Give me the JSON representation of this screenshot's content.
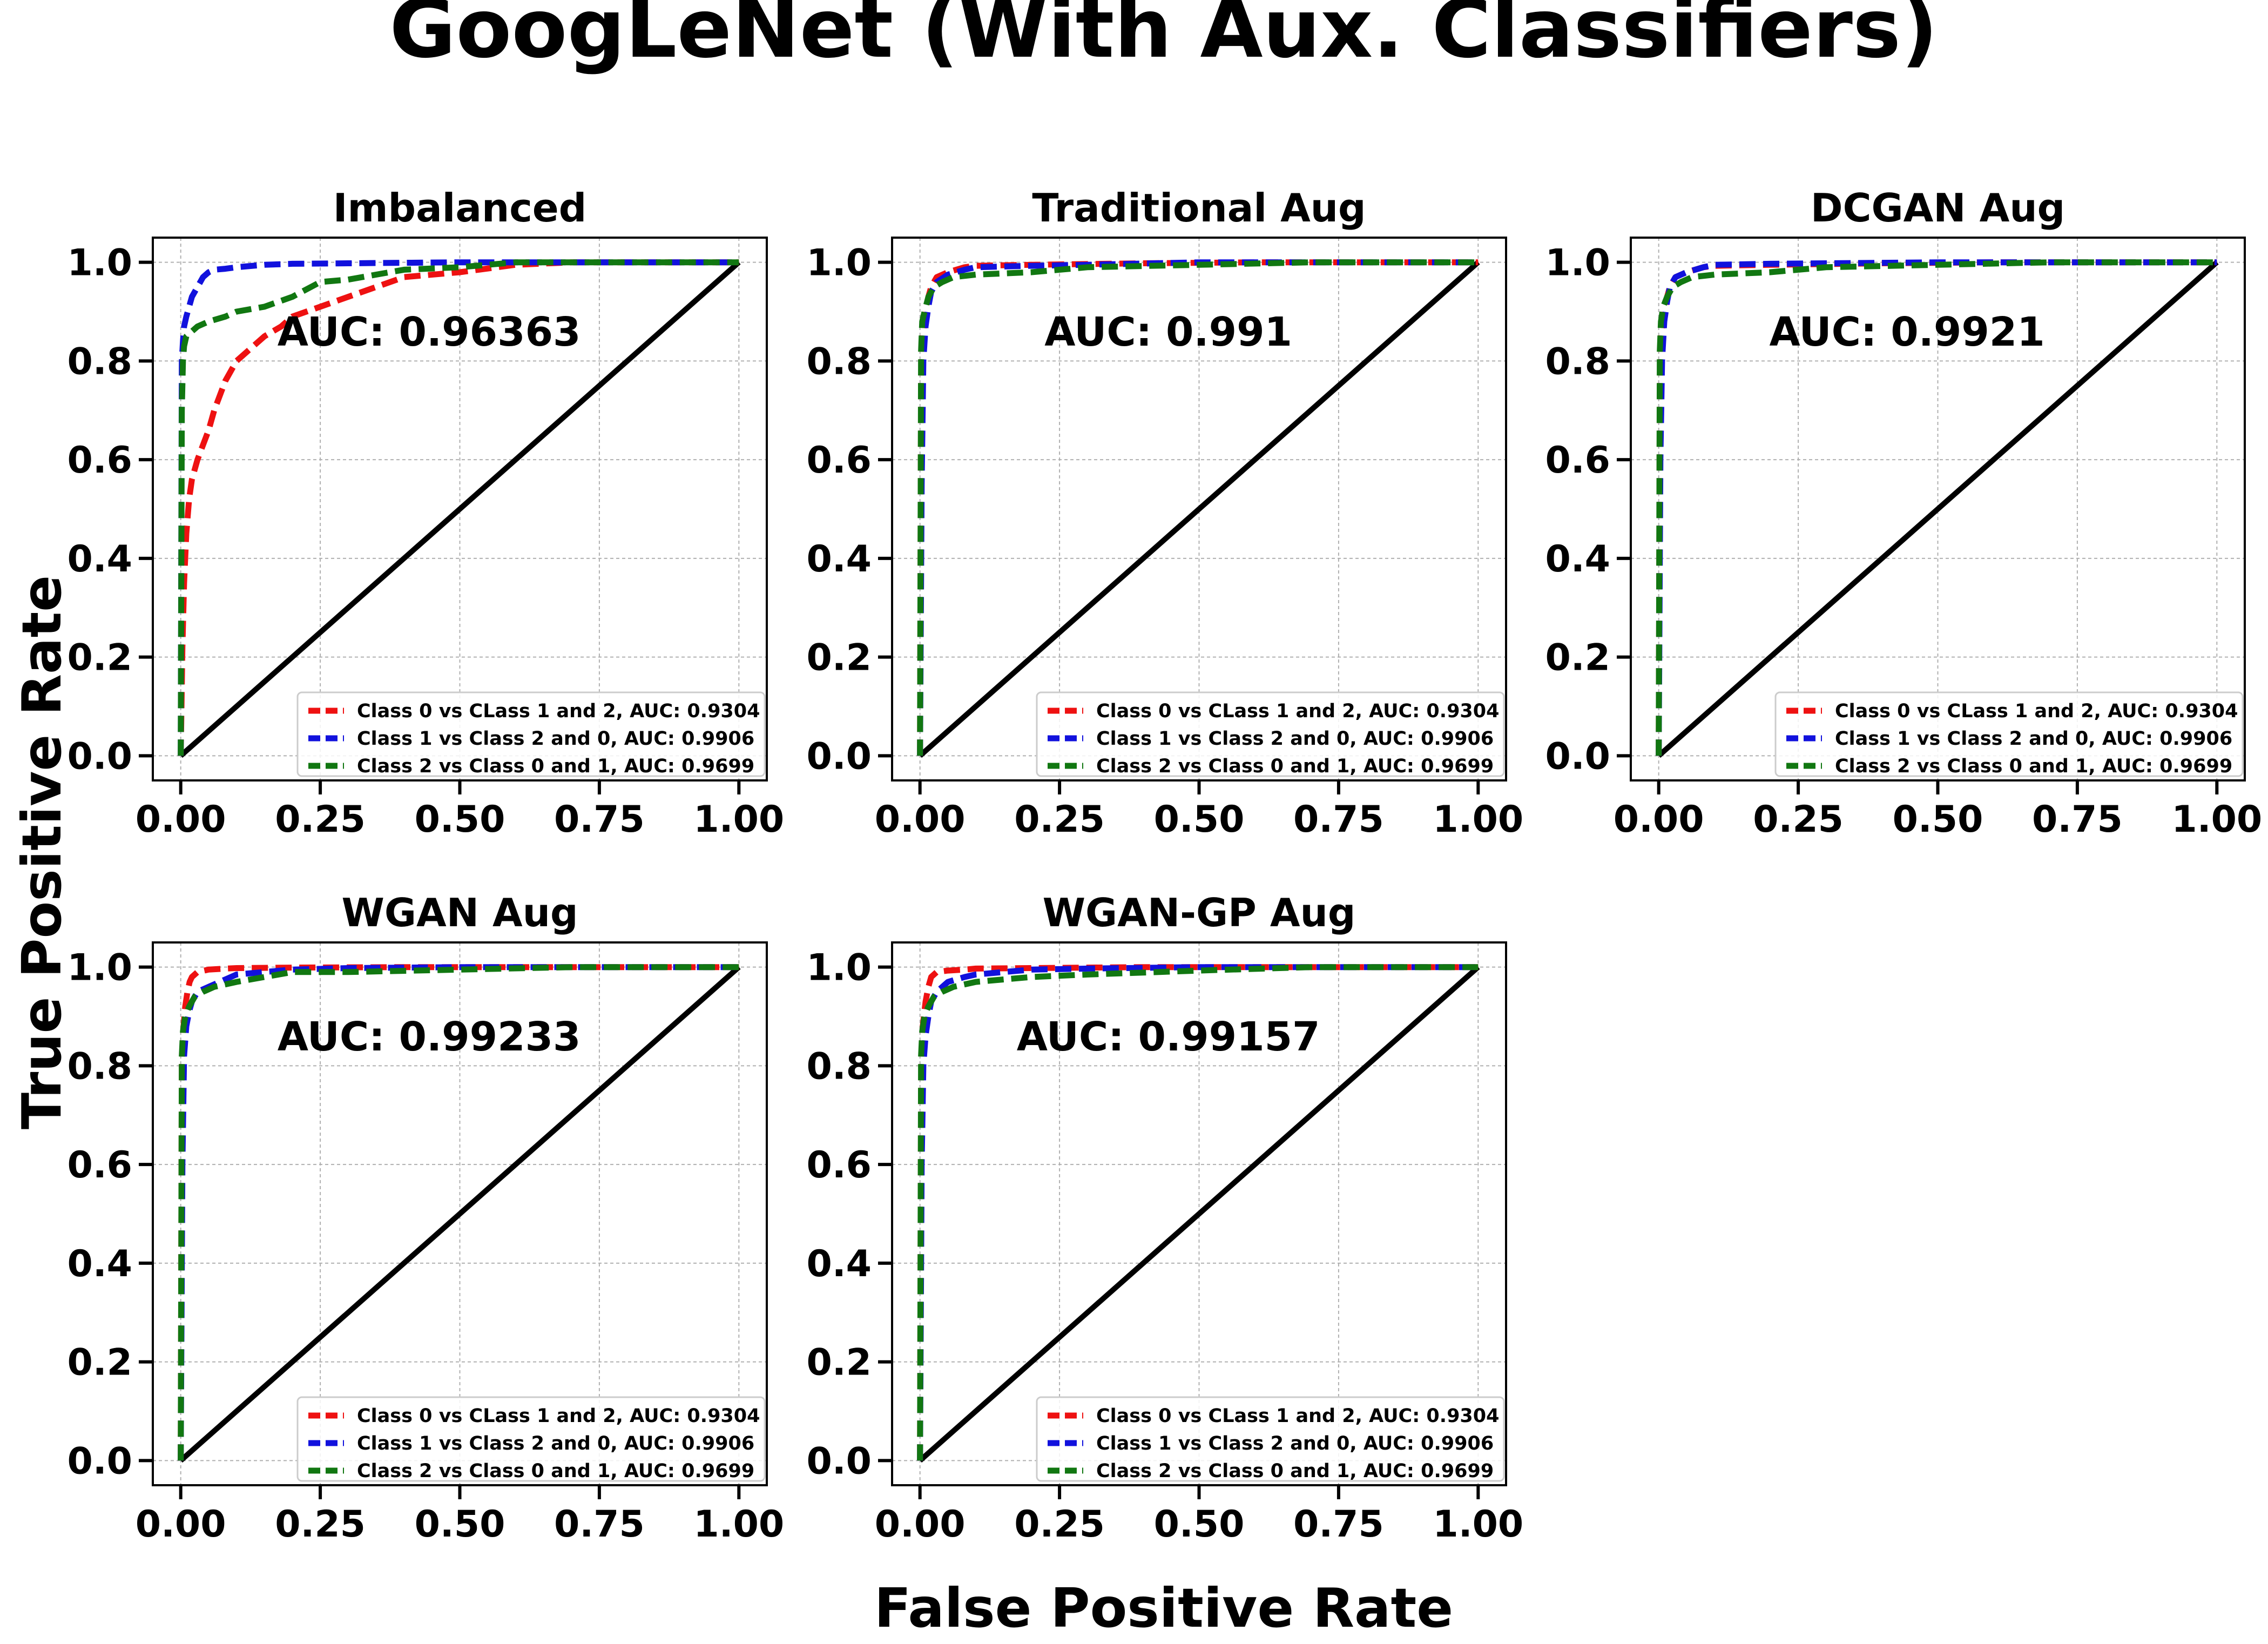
{
  "figure": {
    "title": "GoogLeNet (With Aux. Classifiers)",
    "xlabel": "False Positive Rate",
    "ylabel": "True Positive Rate"
  },
  "colors": {
    "class0": "#ee1111",
    "class1": "#1111dd",
    "class2": "#117711",
    "diagonal": "#000000",
    "grid": "#b0b0b0"
  },
  "chart_data": [
    {
      "type": "line",
      "title": "Imbalanced",
      "auc_label": "AUC: 0.96363",
      "xlim": [
        -0.05,
        1.05
      ],
      "ylim": [
        -0.05,
        1.05
      ],
      "xticks": [
        "0.00",
        "0.25",
        "0.50",
        "0.75",
        "1.00"
      ],
      "yticks": [
        "0.0",
        "0.2",
        "0.4",
        "0.6",
        "0.8",
        "1.0"
      ],
      "grid": true,
      "legend_position": "lower right",
      "series": [
        {
          "name": "Class 0 vs CLass 1 and 2, AUC: 0.9304",
          "x": [
            0,
            0.003,
            0.006,
            0.01,
            0.015,
            0.02,
            0.03,
            0.04,
            0.05,
            0.06,
            0.08,
            0.1,
            0.12,
            0.15,
            0.18,
            0.2,
            0.25,
            0.3,
            0.35,
            0.4,
            0.5,
            0.6,
            0.7,
            1.0
          ],
          "y": [
            0,
            0.22,
            0.35,
            0.45,
            0.52,
            0.56,
            0.6,
            0.63,
            0.66,
            0.7,
            0.76,
            0.8,
            0.82,
            0.85,
            0.87,
            0.89,
            0.91,
            0.93,
            0.95,
            0.97,
            0.98,
            0.995,
            1.0,
            1.0
          ]
        },
        {
          "name": "Class 1 vs Class 2 and 0,  AUC:  0.9906",
          "x": [
            0,
            0.002,
            0.004,
            0.006,
            0.01,
            0.015,
            0.02,
            0.03,
            0.04,
            0.05,
            0.06,
            0.08,
            0.1,
            0.15,
            0.2,
            0.3,
            0.4,
            0.5,
            0.7,
            1.0
          ],
          "y": [
            0,
            0.8,
            0.84,
            0.87,
            0.89,
            0.91,
            0.93,
            0.95,
            0.97,
            0.98,
            0.985,
            0.987,
            0.99,
            0.995,
            0.997,
            0.998,
            0.999,
            1.0,
            1.0,
            1.0
          ]
        },
        {
          "name": "Class 2 vs Class 0 and 1, AUC: 0.9699",
          "x": [
            0,
            0.002,
            0.004,
            0.006,
            0.01,
            0.015,
            0.02,
            0.03,
            0.05,
            0.08,
            0.1,
            0.15,
            0.2,
            0.25,
            0.3,
            0.35,
            0.4,
            0.5,
            0.6,
            1.0
          ],
          "y": [
            0,
            0.7,
            0.8,
            0.83,
            0.85,
            0.855,
            0.86,
            0.87,
            0.88,
            0.89,
            0.9,
            0.91,
            0.93,
            0.96,
            0.965,
            0.975,
            0.985,
            0.99,
            1.0,
            1.0
          ]
        }
      ]
    },
    {
      "type": "line",
      "title": "Traditional Aug",
      "auc_label": "AUC: 0.991",
      "xlim": [
        -0.05,
        1.05
      ],
      "ylim": [
        -0.05,
        1.05
      ],
      "xticks": [
        "0.00",
        "0.25",
        "0.50",
        "0.75",
        "1.00"
      ],
      "yticks": [
        "0.0",
        "0.2",
        "0.4",
        "0.6",
        "0.8",
        "1.0"
      ],
      "grid": true,
      "legend_position": "lower right",
      "series": [
        {
          "name": "Class 0 vs CLass 1 and 2, AUC: 0.9304",
          "x": [
            0,
            0.002,
            0.005,
            0.01,
            0.015,
            0.02,
            0.03,
            0.05,
            0.08,
            0.1,
            0.2,
            0.4,
            0.6,
            1.0
          ],
          "y": [
            0,
            0.75,
            0.85,
            0.9,
            0.93,
            0.95,
            0.97,
            0.98,
            0.99,
            0.993,
            0.995,
            0.998,
            1.0,
            1.0
          ]
        },
        {
          "name": "Class 1 vs Class 2 and 0,  AUC:  0.9906",
          "x": [
            0,
            0.003,
            0.006,
            0.01,
            0.015,
            0.02,
            0.03,
            0.05,
            0.08,
            0.1,
            0.2,
            0.3,
            0.5,
            1.0
          ],
          "y": [
            0,
            0.55,
            0.8,
            0.87,
            0.91,
            0.94,
            0.96,
            0.975,
            0.985,
            0.99,
            0.993,
            0.995,
            1.0,
            1.0
          ]
        },
        {
          "name": "Class 2 vs Class 0 and 1, AUC: 0.9699",
          "x": [
            0,
            0.002,
            0.004,
            0.008,
            0.015,
            0.025,
            0.04,
            0.06,
            0.1,
            0.2,
            0.3,
            0.5,
            0.7,
            1.0
          ],
          "y": [
            0,
            0.82,
            0.88,
            0.9,
            0.93,
            0.95,
            0.96,
            0.97,
            0.975,
            0.98,
            0.99,
            0.995,
            1.0,
            1.0
          ]
        }
      ]
    },
    {
      "type": "line",
      "title": "DCGAN Aug",
      "auc_label": "AUC: 0.9921",
      "xlim": [
        -0.05,
        1.05
      ],
      "ylim": [
        -0.05,
        1.05
      ],
      "xticks": [
        "0.00",
        "0.25",
        "0.50",
        "0.75",
        "1.00"
      ],
      "yticks": [
        "0.0",
        "0.2",
        "0.4",
        "0.6",
        "0.8",
        "1.0"
      ],
      "grid": true,
      "legend_position": "lower right",
      "series": [
        {
          "name": "Class 0 vs CLass 1 and 2, AUC: 0.9304",
          "x": [
            0,
            0.002,
            0.005,
            0.01,
            0.015,
            0.02,
            0.03,
            0.05,
            0.08,
            0.1,
            0.2,
            0.4,
            0.6,
            1.0
          ],
          "y": [
            0,
            0.72,
            0.85,
            0.9,
            0.93,
            0.95,
            0.97,
            0.98,
            0.99,
            0.993,
            0.995,
            0.998,
            1.0,
            1.0
          ]
        },
        {
          "name": "Class 1 vs Class 2 and 0,  AUC:  0.9906",
          "x": [
            0,
            0.003,
            0.006,
            0.01,
            0.015,
            0.02,
            0.03,
            0.05,
            0.08,
            0.1,
            0.2,
            0.3,
            0.5,
            1.0
          ],
          "y": [
            0,
            0.6,
            0.8,
            0.88,
            0.92,
            0.95,
            0.97,
            0.98,
            0.99,
            0.995,
            0.997,
            0.998,
            1.0,
            1.0
          ]
        },
        {
          "name": "Class 2 vs Class 0 and 1, AUC: 0.9699",
          "x": [
            0,
            0.002,
            0.004,
            0.008,
            0.015,
            0.025,
            0.04,
            0.06,
            0.1,
            0.2,
            0.3,
            0.5,
            0.7,
            1.0
          ],
          "y": [
            0,
            0.82,
            0.88,
            0.91,
            0.93,
            0.95,
            0.96,
            0.97,
            0.975,
            0.98,
            0.99,
            0.995,
            1.0,
            1.0
          ]
        }
      ]
    },
    {
      "type": "line",
      "title": "WGAN Aug",
      "auc_label": "AUC: 0.99233",
      "xlim": [
        -0.05,
        1.05
      ],
      "ylim": [
        -0.05,
        1.05
      ],
      "xticks": [
        "0.00",
        "0.25",
        "0.50",
        "0.75",
        "1.00"
      ],
      "yticks": [
        "0.0",
        "0.2",
        "0.4",
        "0.6",
        "0.8",
        "1.0"
      ],
      "grid": true,
      "legend_position": "lower right",
      "series": [
        {
          "name": "Class 0 vs CLass 1 and 2, AUC: 0.9304",
          "x": [
            0,
            0.002,
            0.005,
            0.008,
            0.012,
            0.016,
            0.02,
            0.03,
            0.05,
            0.08,
            0.1,
            0.2,
            0.4,
            1.0
          ],
          "y": [
            0,
            0.8,
            0.88,
            0.92,
            0.95,
            0.97,
            0.98,
            0.99,
            0.995,
            0.997,
            0.998,
            0.999,
            1.0,
            1.0
          ]
        },
        {
          "name": "Class 1 vs Class 2 and 0,  AUC:  0.9906",
          "x": [
            0,
            0.003,
            0.006,
            0.01,
            0.015,
            0.02,
            0.03,
            0.05,
            0.08,
            0.1,
            0.15,
            0.2,
            0.3,
            0.5,
            1.0
          ],
          "y": [
            0,
            0.6,
            0.82,
            0.88,
            0.91,
            0.93,
            0.95,
            0.96,
            0.975,
            0.985,
            0.99,
            0.995,
            0.998,
            1.0,
            1.0
          ]
        },
        {
          "name": "Class 2 vs Class 0 and 1, AUC: 0.9699",
          "x": [
            0,
            0.002,
            0.004,
            0.008,
            0.015,
            0.025,
            0.04,
            0.06,
            0.1,
            0.15,
            0.2,
            0.3,
            0.5,
            0.7,
            1.0
          ],
          "y": [
            0,
            0.82,
            0.87,
            0.9,
            0.92,
            0.94,
            0.95,
            0.96,
            0.97,
            0.98,
            0.99,
            0.99,
            0.995,
            1.0,
            1.0
          ]
        }
      ]
    },
    {
      "type": "line",
      "title": "WGAN-GP Aug",
      "auc_label": "AUC: 0.99157",
      "xlim": [
        -0.05,
        1.05
      ],
      "ylim": [
        -0.05,
        1.05
      ],
      "xticks": [
        "0.00",
        "0.25",
        "0.50",
        "0.75",
        "1.00"
      ],
      "yticks": [
        "0.0",
        "0.2",
        "0.4",
        "0.6",
        "0.8",
        "1.0"
      ],
      "grid": true,
      "legend_position": "lower right",
      "series": [
        {
          "name": "Class 0 vs CLass 1 and 2, AUC: 0.9304",
          "x": [
            0,
            0.002,
            0.005,
            0.01,
            0.015,
            0.02,
            0.03,
            0.05,
            0.08,
            0.1,
            0.2,
            0.4,
            1.0
          ],
          "y": [
            0,
            0.75,
            0.88,
            0.93,
            0.96,
            0.98,
            0.99,
            0.993,
            0.995,
            0.997,
            0.998,
            1.0,
            1.0
          ]
        },
        {
          "name": "Class 1 vs Class 2 and 0,  AUC:  0.9906",
          "x": [
            0,
            0.003,
            0.006,
            0.01,
            0.015,
            0.02,
            0.03,
            0.05,
            0.08,
            0.1,
            0.15,
            0.2,
            0.3,
            0.5,
            1.0
          ],
          "y": [
            0,
            0.6,
            0.8,
            0.86,
            0.9,
            0.93,
            0.95,
            0.97,
            0.98,
            0.985,
            0.99,
            0.995,
            0.997,
            1.0,
            1.0
          ]
        },
        {
          "name": "Class 2 vs Class 0 and 1, AUC: 0.9699",
          "x": [
            0,
            0.002,
            0.004,
            0.008,
            0.015,
            0.025,
            0.04,
            0.06,
            0.1,
            0.15,
            0.2,
            0.3,
            0.5,
            0.7,
            1.0
          ],
          "y": [
            0,
            0.82,
            0.87,
            0.9,
            0.92,
            0.94,
            0.95,
            0.96,
            0.97,
            0.975,
            0.98,
            0.985,
            0.993,
            1.0,
            1.0
          ]
        }
      ]
    }
  ]
}
